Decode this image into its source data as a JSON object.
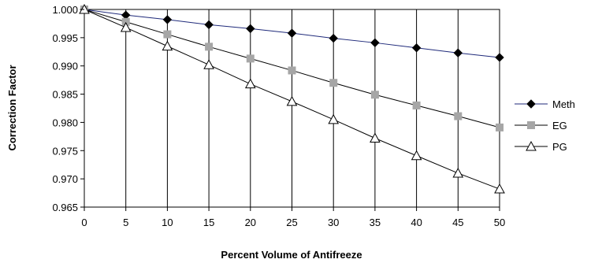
{
  "chart_data": {
    "type": "line",
    "title": "",
    "xlabel": "Percent Volume of Antifreeze",
    "ylabel": "Correction Factor",
    "xlim": [
      0,
      50
    ],
    "ylim": [
      0.965,
      1.0
    ],
    "x_ticks": [
      "0",
      "5",
      "10",
      "15",
      "20",
      "25",
      "30",
      "35",
      "40",
      "45",
      "50"
    ],
    "y_ticks": [
      "0.965",
      "0.970",
      "0.975",
      "0.980",
      "0.985",
      "0.990",
      "0.995",
      "1.000"
    ],
    "grid": "vertical",
    "legend": "right",
    "x": [
      0,
      5,
      10,
      15,
      20,
      25,
      30,
      35,
      40,
      45,
      50
    ],
    "series": [
      {
        "name": "Meth",
        "marker": "diamond",
        "line_color": "#1f2a7a",
        "marker_color": "#000000",
        "values": [
          1.0,
          0.999,
          0.9982,
          0.9973,
          0.9966,
          0.9958,
          0.9949,
          0.9941,
          0.9932,
          0.9923,
          0.9915
        ]
      },
      {
        "name": "EG",
        "marker": "square",
        "line_color": "#000000",
        "marker_color": "#a6a6a6",
        "values": [
          1.0,
          0.9978,
          0.9956,
          0.9934,
          0.9913,
          0.9892,
          0.987,
          0.9849,
          0.983,
          0.9811,
          0.9791
        ]
      },
      {
        "name": "PG",
        "marker": "triangle",
        "line_color": "#000000",
        "marker_color": "#ffffff",
        "values": [
          1.0,
          0.9968,
          0.9935,
          0.9902,
          0.9868,
          0.9837,
          0.9805,
          0.9772,
          0.9741,
          0.971,
          0.9682
        ]
      }
    ]
  }
}
